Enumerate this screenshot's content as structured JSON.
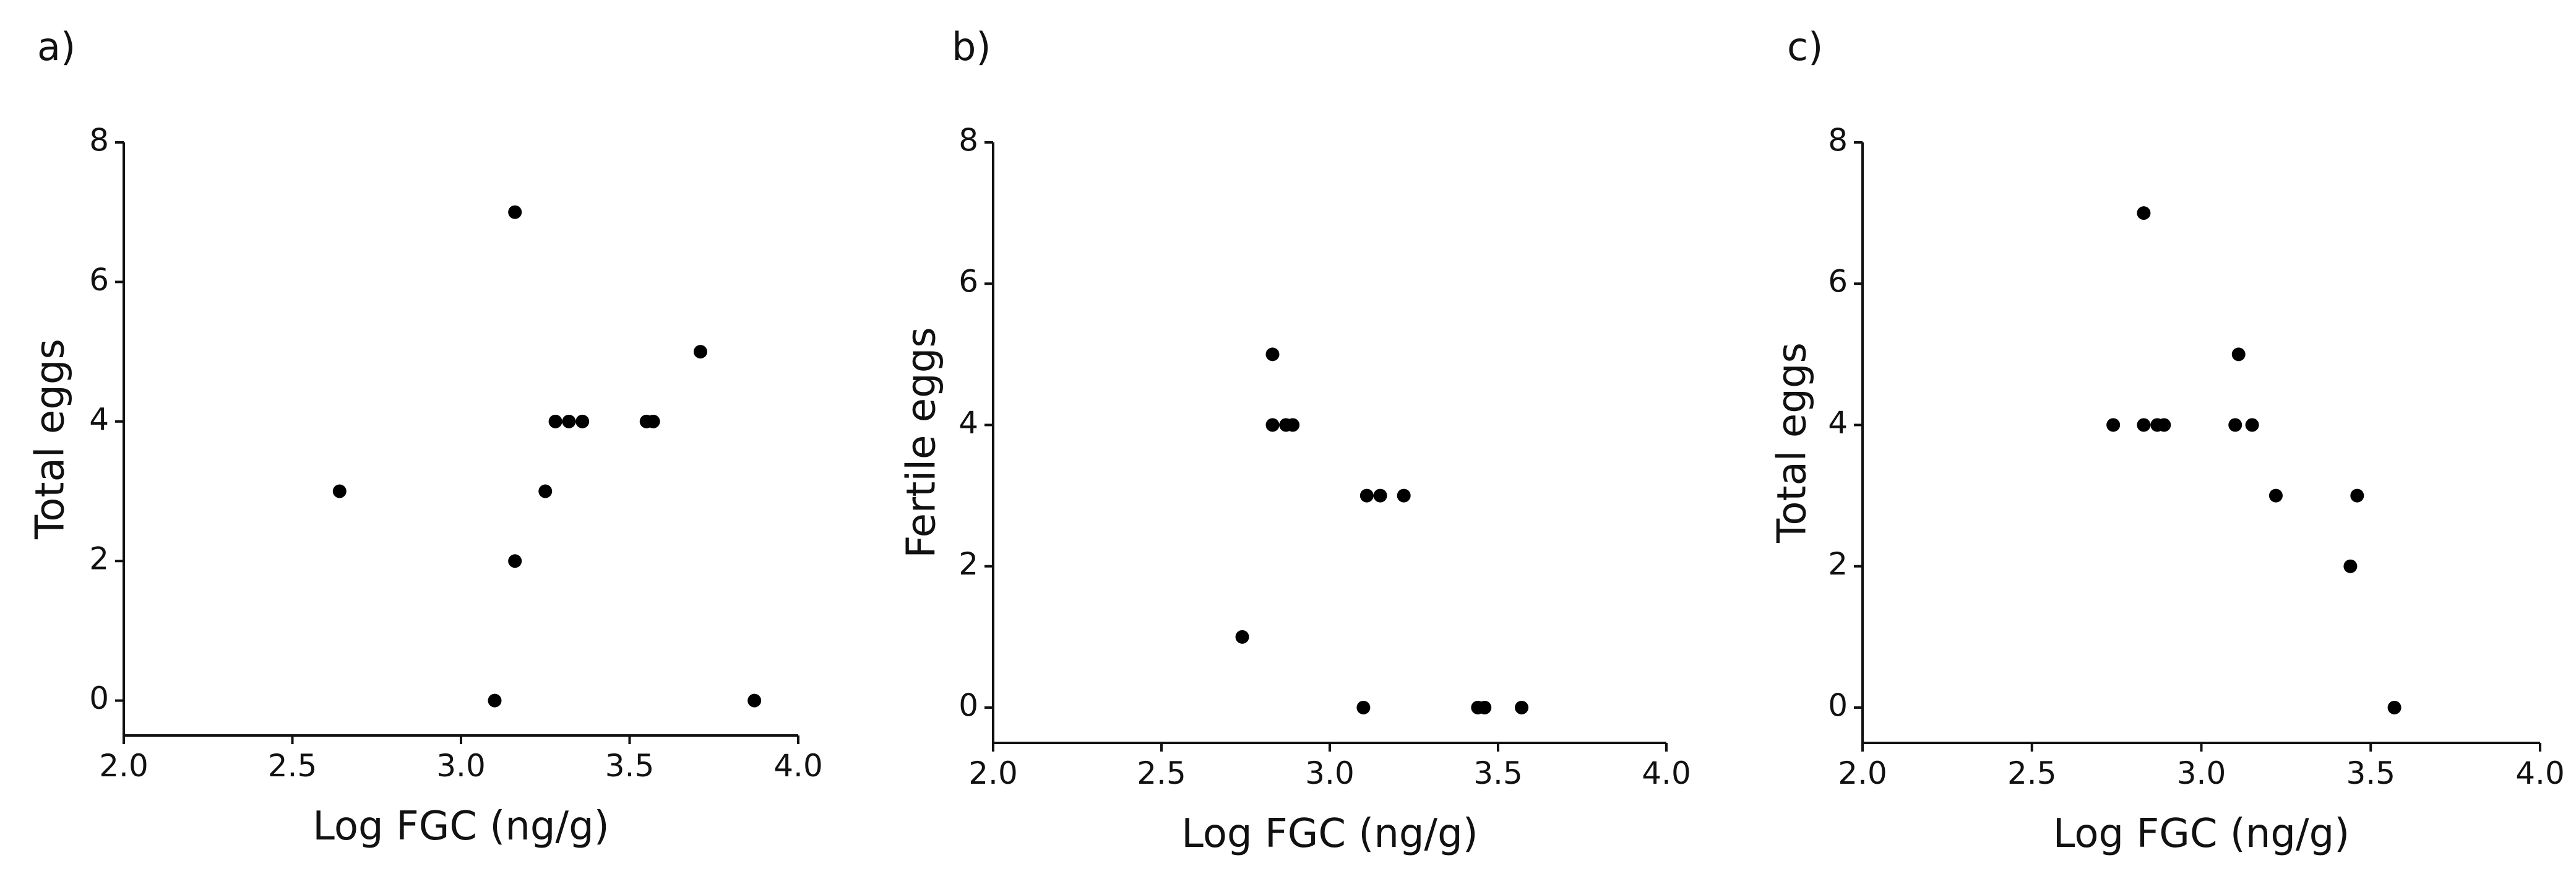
{
  "colors": {
    "background": "#ffffff",
    "axis": "#111111",
    "point": "#000000"
  },
  "chart_data": [
    {
      "type": "scatter",
      "panel_label": "a)",
      "xlabel": "Log FGC (ng/g)",
      "ylabel": "Total eggs",
      "xlim": [
        2.0,
        4.0
      ],
      "ylim": [
        -0.5,
        8
      ],
      "xticks": [
        "2.0",
        "2.5",
        "3.0",
        "3.5",
        "4.0"
      ],
      "yticks": [
        "0",
        "2",
        "4",
        "6",
        "8"
      ],
      "grid": false,
      "series": [
        {
          "name": "points",
          "x": [
            2.64,
            3.1,
            3.16,
            3.16,
            3.25,
            3.28,
            3.32,
            3.36,
            3.55,
            3.57,
            3.71,
            3.87
          ],
          "y": [
            3,
            0,
            7,
            2,
            3,
            4,
            4,
            4,
            4,
            4,
            5,
            0
          ]
        }
      ]
    },
    {
      "type": "scatter",
      "panel_label": "b)",
      "xlabel": "Log FGC (ng/g)",
      "ylabel": "Fertile eggs",
      "xlim": [
        2.0,
        4.0
      ],
      "ylim": [
        -0.5,
        8
      ],
      "xticks": [
        "2.0",
        "2.5",
        "3.0",
        "3.5",
        "4.0"
      ],
      "yticks": [
        "0",
        "2",
        "4",
        "6",
        "8"
      ],
      "grid": false,
      "series": [
        {
          "name": "points",
          "x": [
            2.74,
            2.83,
            2.83,
            2.87,
            2.89,
            3.1,
            3.11,
            3.15,
            3.22,
            3.44,
            3.46,
            3.57
          ],
          "y": [
            1,
            5,
            4,
            4,
            4,
            0,
            3,
            3,
            3,
            0,
            0,
            0
          ]
        }
      ]
    },
    {
      "type": "scatter",
      "panel_label": "c)",
      "xlabel": "Log FGC (ng/g)",
      "ylabel": "Total eggs",
      "xlim": [
        2.0,
        4.0
      ],
      "ylim": [
        -0.5,
        8
      ],
      "xticks": [
        "2.0",
        "2.5",
        "3.0",
        "3.5",
        "4.0"
      ],
      "yticks": [
        "0",
        "2",
        "4",
        "6",
        "8"
      ],
      "grid": false,
      "series": [
        {
          "name": "points",
          "x": [
            2.74,
            2.83,
            2.83,
            2.87,
            2.89,
            3.1,
            3.11,
            3.15,
            3.22,
            3.44,
            3.46,
            3.57
          ],
          "y": [
            4,
            7,
            4,
            4,
            4,
            4,
            5,
            4,
            3,
            2,
            3,
            0
          ]
        }
      ]
    }
  ]
}
